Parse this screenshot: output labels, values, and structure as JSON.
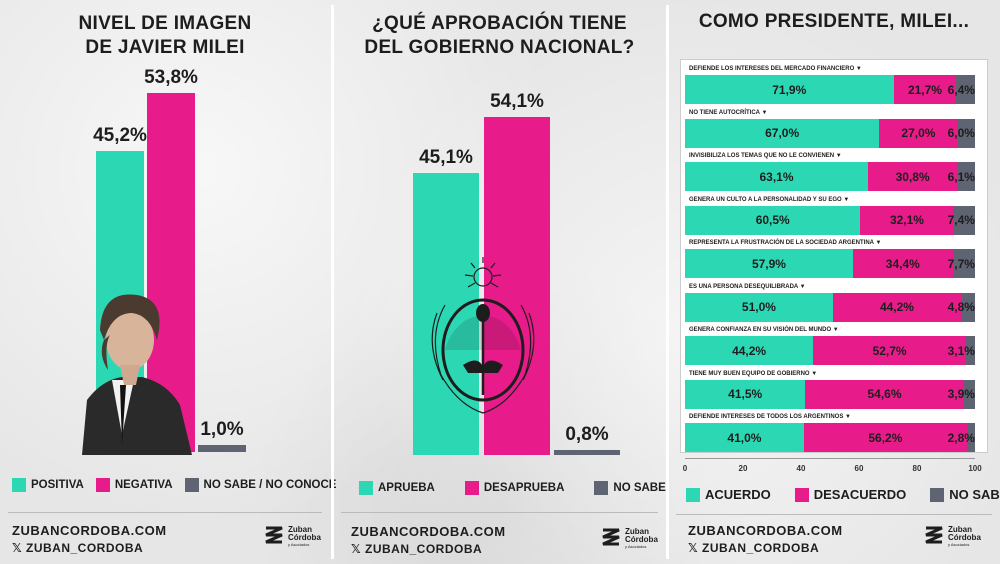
{
  "colors": {
    "positive": "#2cd8b4",
    "negative": "#e81b8a",
    "neutral": "#5f6472"
  },
  "chart_data": [
    {
      "type": "bar",
      "title": "NIVEL DE IMAGEN DE JAVIER MILEI",
      "title_lines": [
        "NIVEL DE IMAGEN",
        "DE JAVIER MILEI"
      ],
      "categories": [
        "POSITIVA",
        "NEGATIVA",
        "NO SABE / NO CONOCE"
      ],
      "values": [
        45.2,
        53.8,
        1.0
      ],
      "labels": [
        "45,2%",
        "53,8%",
        "1,0%"
      ],
      "ylim": [
        0,
        60
      ]
    },
    {
      "type": "bar",
      "title": "¿QUÉ APROBACIÓN TIENE DEL GOBIERNO NACIONAL?",
      "title_lines": [
        "¿QUÉ APROBACIÓN TIENE",
        "DEL GOBIERNO NACIONAL?"
      ],
      "categories": [
        "APRUEBA",
        "DESAPRUEBA",
        "NO SABE"
      ],
      "values": [
        45.1,
        54.1,
        0.8
      ],
      "labels": [
        "45,1%",
        "54,1%",
        "0,8%"
      ],
      "ylim": [
        0,
        60
      ]
    },
    {
      "type": "bar",
      "orientation": "horizontal-stacked",
      "title": "COMO PRESIDENTE, MILEI...",
      "series_names": [
        "ACUERDO",
        "DESACUERDO",
        "NO SABE"
      ],
      "rows": [
        {
          "label": "DEFIENDE LOS INTERESES DEL MERCADO FINANCIERO",
          "values": [
            71.9,
            21.7,
            6.4
          ],
          "labels": [
            "71,9%",
            "21,7%",
            "6,4%"
          ]
        },
        {
          "label": "NO TIENE AUTOCRÍTICA",
          "values": [
            67.0,
            27.0,
            6.0
          ],
          "labels": [
            "67,0%",
            "27,0%",
            "6,0%"
          ]
        },
        {
          "label": "INVISIBILIZA LOS TEMAS QUE NO LE CONVIENEN",
          "values": [
            63.1,
            30.8,
            6.1
          ],
          "labels": [
            "63,1%",
            "30,8%",
            "6,1%"
          ]
        },
        {
          "label": "GENERA UN CULTO A LA PERSONALIDAD Y SU EGO",
          "values": [
            60.5,
            32.1,
            7.4
          ],
          "labels": [
            "60,5%",
            "32,1%",
            "7,4%"
          ]
        },
        {
          "label": "REPRESENTA LA FRUSTRACIÓN DE LA SOCIEDAD ARGENTINA",
          "values": [
            57.9,
            34.4,
            7.7
          ],
          "labels": [
            "57,9%",
            "34,4%",
            "7,7%"
          ]
        },
        {
          "label": "ES UNA PERSONA DESEQUILIBRADA",
          "values": [
            51.0,
            44.2,
            4.8
          ],
          "labels": [
            "51,0%",
            "44,2%",
            "4,8%"
          ]
        },
        {
          "label": "GENERA CONFIANZA EN SU VISIÓN DEL MUNDO",
          "values": [
            44.2,
            52.7,
            3.1
          ],
          "labels": [
            "44,2%",
            "52,7%",
            "3,1%"
          ]
        },
        {
          "label": "TIENE MUY BUEN EQUIPO DE GOBIERNO",
          "values": [
            41.5,
            54.6,
            3.9
          ],
          "labels": [
            "41,5%",
            "54,6%",
            "3,9%"
          ]
        },
        {
          "label": "DEFIENDE INTERESES DE TODOS LOS ARGENTINOS",
          "values": [
            41.0,
            56.2,
            2.8
          ],
          "labels": [
            "41,0%",
            "56,2%",
            "2,8%"
          ]
        }
      ],
      "xticks": [
        "0",
        "20",
        "40",
        "60",
        "80",
        "100"
      ],
      "xlim": [
        0,
        100
      ]
    }
  ],
  "footer": {
    "site": "ZUBANCORDOBA.COM",
    "handle": "𝕏 ZUBAN_CORDOBA",
    "logo_line1": "Zuban",
    "logo_line2": "Córdoba",
    "logo_sub": "y Asociados"
  }
}
